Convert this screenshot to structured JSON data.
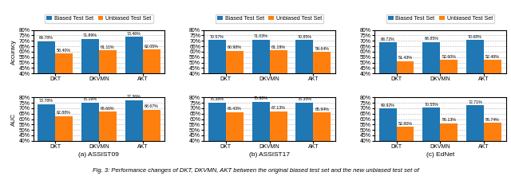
{
  "caption": "Fig. 3: Performance changes of DKT, DKVMN, AKT between the original biased test set and the new unbiased test set of",
  "chart_data": [
    {
      "type": "bar",
      "categories": [
        "DKT",
        "DKVMN",
        "AKT"
      ],
      "ylabel": "Accuracy",
      "ylim": [
        40,
        80
      ],
      "yticks": [
        {
          "value": 40,
          "label": "40%"
        },
        {
          "value": 45,
          "label": "45%"
        },
        {
          "value": 50,
          "label": "50%"
        },
        {
          "value": 55,
          "label": "55%"
        },
        {
          "value": 60,
          "label": "60%"
        },
        {
          "value": 65,
          "label": "65%"
        },
        {
          "value": 70,
          "label": "70%"
        },
        {
          "value": 75,
          "label": "75%"
        },
        {
          "value": 80,
          "label": "80%"
        }
      ],
      "grid": true,
      "data_labels": true,
      "legend": "upper center",
      "series": [
        {
          "name": "Biased Test Set",
          "values": [
            69.78,
            71.89,
            73.46
          ],
          "value_labels": [
            "69.78%",
            "71.89%",
            "73.46%"
          ]
        },
        {
          "name": "Unbiased Test Set",
          "values": [
            58.4,
            61.11,
            62.05
          ],
          "value_labels": [
            "58.40%",
            "61.11%",
            "62.05%"
          ]
        }
      ]
    },
    {
      "type": "bar",
      "categories": [
        "DKT",
        "DKVMN",
        "AKT"
      ],
      "ylim": [
        40,
        80
      ],
      "yticks": [
        {
          "value": 40,
          "label": "40%"
        },
        {
          "value": 45,
          "label": "45%"
        },
        {
          "value": 50,
          "label": "50%"
        },
        {
          "value": 55,
          "label": "55%"
        },
        {
          "value": 60,
          "label": "60%"
        },
        {
          "value": 65,
          "label": "65%"
        },
        {
          "value": 70,
          "label": "70%"
        },
        {
          "value": 75,
          "label": "75%"
        },
        {
          "value": 80,
          "label": "80%"
        }
      ],
      "grid": true,
      "data_labels": true,
      "legend": "upper center",
      "series": [
        {
          "name": "Biased Test Set",
          "values": [
            70.57,
            71.03,
            70.85
          ],
          "value_labels": [
            "70.57%",
            "71.03%",
            "70.85%"
          ]
        },
        {
          "name": "Unbiased Test Set",
          "values": [
            60.98,
            61.19,
            59.64
          ],
          "value_labels": [
            "60.98%",
            "61.19%",
            "59.64%"
          ]
        }
      ]
    },
    {
      "type": "bar",
      "categories": [
        "DKT",
        "DKVMN",
        "AKT"
      ],
      "ylim": [
        40,
        80
      ],
      "yticks": [
        {
          "value": 40,
          "label": "40%"
        },
        {
          "value": 45,
          "label": "45%"
        },
        {
          "value": 50,
          "label": "50%"
        },
        {
          "value": 55,
          "label": "55%"
        },
        {
          "value": 60,
          "label": "60%"
        },
        {
          "value": 65,
          "label": "65%"
        },
        {
          "value": 70,
          "label": "70%"
        },
        {
          "value": 75,
          "label": "75%"
        },
        {
          "value": 80,
          "label": "80%"
        }
      ],
      "grid": true,
      "data_labels": true,
      "legend": "upper center",
      "series": [
        {
          "name": "Biased Test Set",
          "values": [
            68.72,
            68.85,
            70.68
          ],
          "value_labels": [
            "68.72%",
            "68.85%",
            "70.68%"
          ]
        },
        {
          "name": "Unbiased Test Set",
          "values": [
            51.43,
            52.6,
            52.48
          ],
          "value_labels": [
            "51.43%",
            "52.60%",
            "52.48%"
          ]
        }
      ]
    },
    {
      "type": "bar",
      "categories": [
        "DKT",
        "DKVMN",
        "AKT"
      ],
      "ylabel": "AUC",
      "xlabel": "(a) ASSIST09",
      "ylim": [
        40,
        80
      ],
      "yticks": [
        {
          "value": 40,
          "label": "40%"
        },
        {
          "value": 45,
          "label": "45%"
        },
        {
          "value": 50,
          "label": "50%"
        },
        {
          "value": 55,
          "label": "55%"
        },
        {
          "value": 60,
          "label": "60%"
        },
        {
          "value": 65,
          "label": "65%"
        },
        {
          "value": 70,
          "label": "70%"
        },
        {
          "value": 75,
          "label": "75%"
        },
        {
          "value": 80,
          "label": "80%"
        }
      ],
      "grid": true,
      "data_labels": true,
      "series": [
        {
          "name": "Biased Test Set",
          "values": [
            73.78,
            75.19,
            77.36
          ],
          "value_labels": [
            "73.78%",
            "75.19%",
            "77.36%"
          ]
        },
        {
          "name": "Unbiased Test Set",
          "values": [
            62.88,
            66.66,
            68.67
          ],
          "value_labels": [
            "62.88%",
            "66.66%",
            "68.67%"
          ]
        }
      ]
    },
    {
      "type": "bar",
      "categories": [
        "DKT",
        "DKVMN",
        "AKT"
      ],
      "xlabel": "(b) ASSIST17",
      "ylim": [
        40,
        80
      ],
      "yticks": [
        {
          "value": 40,
          "label": "40%"
        },
        {
          "value": 45,
          "label": "45%"
        },
        {
          "value": 50,
          "label": "50%"
        },
        {
          "value": 55,
          "label": "55%"
        },
        {
          "value": 60,
          "label": "60%"
        },
        {
          "value": 65,
          "label": "65%"
        },
        {
          "value": 70,
          "label": "70%"
        },
        {
          "value": 75,
          "label": "75%"
        },
        {
          "value": 80,
          "label": "80%"
        }
      ],
      "grid": true,
      "data_labels": true,
      "series": [
        {
          "name": "Biased Test Set",
          "values": [
            75.38,
            75.9,
            75.35
          ],
          "value_labels": [
            "75.38%",
            "75.90%",
            "75.35%"
          ]
        },
        {
          "name": "Unbiased Test Set",
          "values": [
            66.43,
            67.13,
            65.94
          ],
          "value_labels": [
            "66.43%",
            "67.13%",
            "65.94%"
          ]
        }
      ]
    },
    {
      "type": "bar",
      "categories": [
        "DKT",
        "DKVMN",
        "AKT"
      ],
      "xlabel": "(c) EdNet",
      "ylim": [
        40,
        80
      ],
      "yticks": [
        {
          "value": 40,
          "label": "40%"
        },
        {
          "value": 45,
          "label": "45%"
        },
        {
          "value": 50,
          "label": "50%"
        },
        {
          "value": 55,
          "label": "55%"
        },
        {
          "value": 60,
          "label": "60%"
        },
        {
          "value": 65,
          "label": "65%"
        },
        {
          "value": 70,
          "label": "70%"
        },
        {
          "value": 75,
          "label": "75%"
        },
        {
          "value": 80,
          "label": "80%"
        }
      ],
      "grid": true,
      "data_labels": true,
      "series": [
        {
          "name": "Biased Test Set",
          "values": [
            69.92,
            70.55,
            72.71
          ],
          "value_labels": [
            "69.92%",
            "70.55%",
            "72.71%"
          ]
        },
        {
          "name": "Unbiased Test Set",
          "values": [
            52.8,
            56.13,
            56.74
          ],
          "value_labels": [
            "52.80%",
            "56.13%",
            "56.74%"
          ]
        }
      ]
    }
  ]
}
